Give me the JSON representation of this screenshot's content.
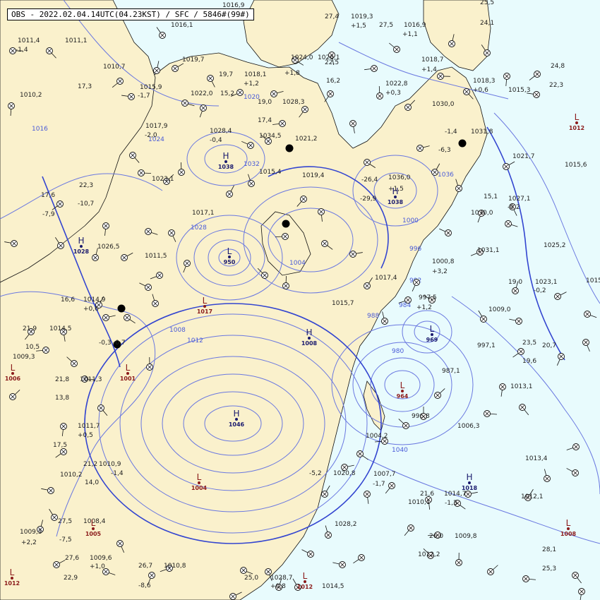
{
  "header": {
    "title": "OBS - 2022.02.04.14UTC(04.23KST) / SFC / 5846#(99#)"
  },
  "colors": {
    "ocean": "#e8fbfd",
    "land": "#faf1cc",
    "isobar": "#6a78e0",
    "isobar_bold": "#3345d0",
    "high": "#1a1a6e",
    "low": "#8b1a1a",
    "station": "#111111"
  },
  "isobar_labels": [
    "1004",
    "1008",
    "1012",
    "1016",
    "1020",
    "1024",
    "1028",
    "1032",
    "1036",
    "1040",
    "980",
    "984",
    "988",
    "992",
    "996",
    "1000"
  ],
  "pressure_systems": [
    {
      "type": "H",
      "value": "1038",
      "color": "#1a1a6e"
    },
    {
      "type": "H",
      "value": "1028",
      "color": "#1a1a6e"
    },
    {
      "type": "H",
      "value": "1038",
      "color": "#1a1a6e"
    },
    {
      "type": "H",
      "value": "1046",
      "color": "#1a1a6e"
    },
    {
      "type": "H",
      "value": "1018",
      "color": "#1a1a6e"
    },
    {
      "type": "H",
      "value": "1008",
      "color": "#1a1a6e"
    },
    {
      "type": "L",
      "value": "1012",
      "color": "#8b1a1a"
    },
    {
      "type": "L",
      "value": "1006",
      "color": "#8b1a1a"
    },
    {
      "type": "L",
      "value": "1001",
      "color": "#8b1a1a"
    },
    {
      "type": "L",
      "value": "1012",
      "color": "#8b1a1a"
    },
    {
      "type": "L",
      "value": "950",
      "color": "#1a1a6e"
    },
    {
      "type": "L",
      "value": "1017",
      "color": "#8b1a1a"
    },
    {
      "type": "L",
      "value": "969",
      "color": "#1a1a6e"
    },
    {
      "type": "L",
      "value": "964",
      "color": "#8b1a1a"
    },
    {
      "type": "L",
      "value": "1004",
      "color": "#8b1a1a"
    },
    {
      "type": "L",
      "value": "1005",
      "color": "#8b1a1a"
    },
    {
      "type": "L",
      "value": "1012",
      "color": "#8b1a1a"
    },
    {
      "type": "L",
      "value": "1008",
      "color": "#8b1a1a"
    }
  ],
  "observations": [
    {
      "text": "1011,4",
      "color": "#222"
    },
    {
      "text": "-1,4",
      "color": "#222"
    },
    {
      "text": "1011,1",
      "color": "#222"
    },
    {
      "text": "1010,2",
      "color": "#222"
    },
    {
      "text": "17,3",
      "color": "#222"
    },
    {
      "text": "1010,7",
      "color": "#222"
    },
    {
      "text": "1015,9",
      "color": "#222"
    },
    {
      "text": "-1,7",
      "color": "#222"
    },
    {
      "text": "1019,7",
      "color": "#222"
    },
    {
      "text": "1016,9",
      "color": "#222"
    },
    {
      "text": "1016,1",
      "color": "#222"
    },
    {
      "text": "1022,0",
      "color": "#222"
    },
    {
      "text": "15,2",
      "color": "#222"
    },
    {
      "text": "19,7",
      "color": "#222"
    },
    {
      "text": "1018,1",
      "color": "#222"
    },
    {
      "text": "+1,2",
      "color": "#222"
    },
    {
      "text": "19,0",
      "color": "#222"
    },
    {
      "text": "1028,3",
      "color": "#222"
    },
    {
      "text": "1024,0",
      "color": "#222"
    },
    {
      "text": "+1,8",
      "color": "#222"
    },
    {
      "text": "1026,1",
      "color": "#222"
    },
    {
      "text": "22,5",
      "color": "#222"
    },
    {
      "text": "16,2",
      "color": "#222"
    },
    {
      "text": "27,4",
      "color": "#222"
    },
    {
      "text": "1019,3",
      "color": "#222"
    },
    {
      "text": "+1,5",
      "color": "#222"
    },
    {
      "text": "27,5",
      "color": "#222"
    },
    {
      "text": "1016,9",
      "color": "#222"
    },
    {
      "text": "+1,1",
      "color": "#222"
    },
    {
      "text": "25,5",
      "color": "#222"
    },
    {
      "text": "24,1",
      "color": "#222"
    },
    {
      "text": "1018,7",
      "color": "#222"
    },
    {
      "text": "+1,4",
      "color": "#222"
    },
    {
      "text": "1022,8",
      "color": "#222"
    },
    {
      "text": "+0,3",
      "color": "#222"
    },
    {
      "text": "24,8",
      "color": "#222"
    },
    {
      "text": "22,3",
      "color": "#222"
    },
    {
      "text": "1018,3",
      "color": "#222"
    },
    {
      "text": "+0,6",
      "color": "#222"
    },
    {
      "text": "1015,3",
      "color": "#222"
    },
    {
      "text": "1030,0",
      "color": "#222"
    },
    {
      "text": "1017,9",
      "color": "#222"
    },
    {
      "text": "-2,0",
      "color": "#222"
    },
    {
      "text": "1028,4",
      "color": "#222"
    },
    {
      "text": "-0,4",
      "color": "#222"
    },
    {
      "text": "17,4",
      "color": "#222"
    },
    {
      "text": "1034,5",
      "color": "#222"
    },
    {
      "text": "1021,2",
      "color": "#222"
    },
    {
      "text": "1031,8",
      "color": "#222"
    },
    {
      "text": "-1,4",
      "color": "#222"
    },
    {
      "text": "-6,3",
      "color": "#222"
    },
    {
      "text": "1021,7",
      "color": "#222"
    },
    {
      "text": "1015,6",
      "color": "#222"
    },
    {
      "text": "22,3",
      "color": "#222"
    },
    {
      "text": "-10,7",
      "color": "#222"
    },
    {
      "text": "17,6",
      "color": "#222"
    },
    {
      "text": "-7,9",
      "color": "#222"
    },
    {
      "text": "1023,1",
      "color": "#222"
    },
    {
      "text": "1015,4",
      "color": "#222"
    },
    {
      "text": "1019,4",
      "color": "#222"
    },
    {
      "text": "-26,4",
      "color": "#222"
    },
    {
      "text": "1036,0",
      "color": "#222"
    },
    {
      "text": "+1,5",
      "color": "#222"
    },
    {
      "text": "-29,9",
      "color": "#222"
    },
    {
      "text": "15,1",
      "color": "#222"
    },
    {
      "text": "1027,1",
      "color": "#222"
    },
    {
      "text": "-0,2",
      "color": "#222"
    },
    {
      "text": "1030,0",
      "color": "#222"
    },
    {
      "text": "1025,2",
      "color": "#222"
    },
    {
      "text": "1031,1",
      "color": "#222"
    },
    {
      "text": "1017,1",
      "color": "#222"
    },
    {
      "text": "1026,5",
      "color": "#222"
    },
    {
      "text": "1011,5",
      "color": "#222"
    },
    {
      "text": "1017,4",
      "color": "#222"
    },
    {
      "text": "1000,8",
      "color": "#222"
    },
    {
      "text": "+3,2",
      "color": "#222"
    },
    {
      "text": "19,0",
      "color": "#222"
    },
    {
      "text": "1023,1",
      "color": "#222"
    },
    {
      "text": "-0,2",
      "color": "#222"
    },
    {
      "text": "1015",
      "color": "#222"
    },
    {
      "text": "16,6",
      "color": "#222"
    },
    {
      "text": "1014,9",
      "color": "#222"
    },
    {
      "text": "+0,6",
      "color": "#222"
    },
    {
      "text": "1015,7",
      "color": "#222"
    },
    {
      "text": "997,5",
      "color": "#222"
    },
    {
      "text": "+1,2",
      "color": "#222"
    },
    {
      "text": "1009,0",
      "color": "#222"
    },
    {
      "text": "21,9",
      "color": "#222"
    },
    {
      "text": "1014,5",
      "color": "#222"
    },
    {
      "text": "10,5",
      "color": "#222"
    },
    {
      "text": "-0,3",
      "color": "#222"
    },
    {
      "text": "-0,7",
      "color": "#222"
    },
    {
      "text": "997,1",
      "color": "#222"
    },
    {
      "text": "23,5",
      "color": "#222"
    },
    {
      "text": "20,7",
      "color": "#222"
    },
    {
      "text": "19,6",
      "color": "#222"
    },
    {
      "text": "1009,3",
      "color": "#222"
    },
    {
      "text": "21,8",
      "color": "#222"
    },
    {
      "text": "1011,3",
      "color": "#222"
    },
    {
      "text": "987,1",
      "color": "#222"
    },
    {
      "text": "1013,1",
      "color": "#222"
    },
    {
      "text": "13,8",
      "color": "#222"
    },
    {
      "text": "996,8",
      "color": "#222"
    },
    {
      "text": "1006,3",
      "color": "#222"
    },
    {
      "text": "1011,7",
      "color": "#222"
    },
    {
      "text": "+0,5",
      "color": "#222"
    },
    {
      "text": "17,5",
      "color": "#222"
    },
    {
      "text": "1004,2",
      "color": "#222"
    },
    {
      "text": "1013,4",
      "color": "#222"
    },
    {
      "text": "21,2",
      "color": "#222"
    },
    {
      "text": "1010,9",
      "color": "#222"
    },
    {
      "text": "-1,4",
      "color": "#222"
    },
    {
      "text": "1010,2",
      "color": "#222"
    },
    {
      "text": "14,0",
      "color": "#222"
    },
    {
      "text": "1007,7",
      "color": "#222"
    },
    {
      "text": "-1,7",
      "color": "#222"
    },
    {
      "text": "21,6",
      "color": "#222"
    },
    {
      "text": "1014,7",
      "color": "#222"
    },
    {
      "text": "-1,3",
      "color": "#222"
    },
    {
      "text": "1010,1",
      "color": "#222"
    },
    {
      "text": "1012,1",
      "color": "#222"
    },
    {
      "text": "27,5",
      "color": "#222"
    },
    {
      "text": "1008,4",
      "color": "#222"
    },
    {
      "text": "1009,3",
      "color": "#222"
    },
    {
      "text": "+2,2",
      "color": "#222"
    },
    {
      "text": "-7,5",
      "color": "#222"
    },
    {
      "text": "1028,2",
      "color": "#222"
    },
    {
      "text": "26,0",
      "color": "#222"
    },
    {
      "text": "1009,8",
      "color": "#222"
    },
    {
      "text": "1012,2",
      "color": "#222"
    },
    {
      "text": "28,1",
      "color": "#222"
    },
    {
      "text": "25,3",
      "color": "#222"
    },
    {
      "text": "27,6",
      "color": "#222"
    },
    {
      "text": "1009,6",
      "color": "#222"
    },
    {
      "text": "+1,0",
      "color": "#222"
    },
    {
      "text": "22,9",
      "color": "#222"
    },
    {
      "text": "26,7",
      "color": "#222"
    },
    {
      "text": "1010,8",
      "color": "#222"
    },
    {
      "text": "-8,6",
      "color": "#222"
    },
    {
      "text": "25,0",
      "color": "#222"
    },
    {
      "text": "1028,7",
      "color": "#222"
    },
    {
      "text": "+0,8",
      "color": "#222"
    },
    {
      "text": "1014,5",
      "color": "#222"
    },
    {
      "text": "-5,2",
      "color": "#222"
    },
    {
      "text": "1020,8",
      "color": "#222"
    }
  ]
}
